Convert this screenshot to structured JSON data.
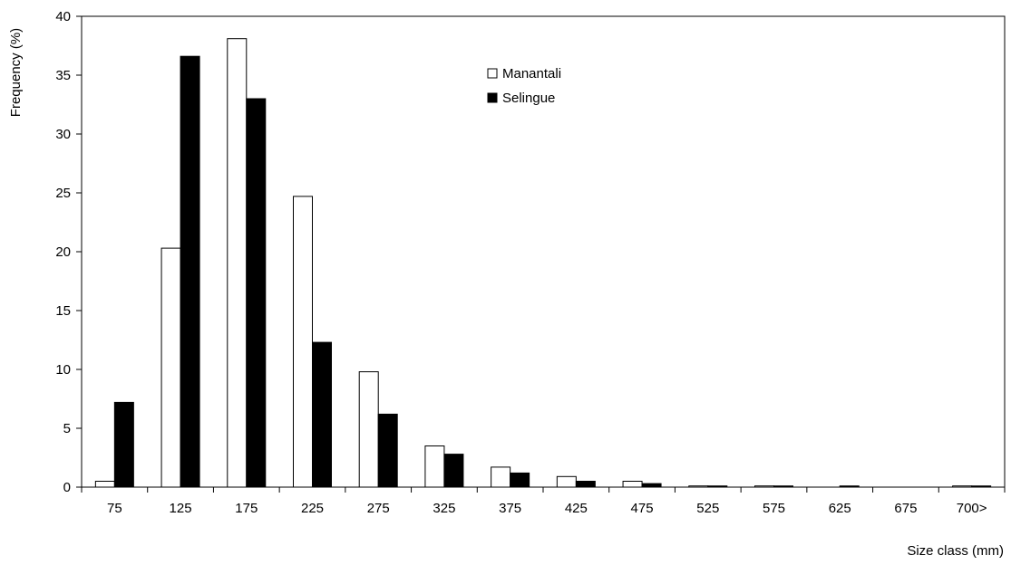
{
  "chart_data": {
    "type": "bar",
    "title": "",
    "xlabel": "Size class (mm)",
    "ylabel": "Frequency (%)",
    "categories": [
      "75",
      "125",
      "175",
      "225",
      "275",
      "325",
      "375",
      "425",
      "475",
      "525",
      "575",
      "625",
      "675",
      "700>"
    ],
    "ylim": [
      0,
      40
    ],
    "yticks": [
      0,
      5,
      10,
      15,
      20,
      25,
      30,
      35,
      40
    ],
    "grid": false,
    "legend_position": "top-center",
    "series": [
      {
        "name": "Manantali",
        "fill": "#ffffff",
        "stroke": "#000000",
        "values": [
          0.5,
          20.3,
          38.1,
          24.7,
          9.8,
          3.5,
          1.7,
          0.9,
          0.5,
          0.1,
          0.1,
          0.0,
          0.0,
          0.1
        ]
      },
      {
        "name": "Selingue",
        "fill": "#000000",
        "stroke": "#000000",
        "values": [
          7.2,
          36.6,
          33.0,
          12.3,
          6.2,
          2.8,
          1.2,
          0.5,
          0.3,
          0.1,
          0.1,
          0.1,
          0.0,
          0.1
        ]
      }
    ]
  }
}
